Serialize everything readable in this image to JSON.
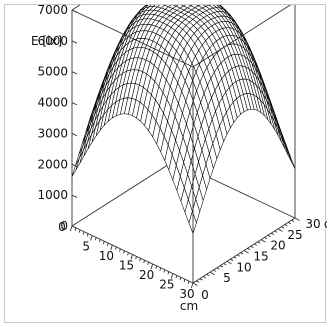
{
  "chart_data": {
    "type": "surface",
    "title": "",
    "zlabel": "E [lx]",
    "x_unit": "cm",
    "y_unit": "cm",
    "x_ticks": [
      0,
      5,
      10,
      15,
      20,
      25,
      30
    ],
    "y_ticks": [
      0,
      5,
      10,
      15,
      20,
      25,
      30
    ],
    "z_ticks": [
      0,
      1000,
      2000,
      3000,
      4000,
      5000,
      6000,
      7000
    ],
    "xlim": [
      0,
      30
    ],
    "ylim": [
      0,
      30
    ],
    "zlim": [
      0,
      7000
    ],
    "grid_steps": 30,
    "peak": {
      "x": 15,
      "y": 15,
      "z": 7000
    },
    "edge_mid_value": 4500,
    "corner_value": 1600,
    "line_color": "#000000"
  }
}
